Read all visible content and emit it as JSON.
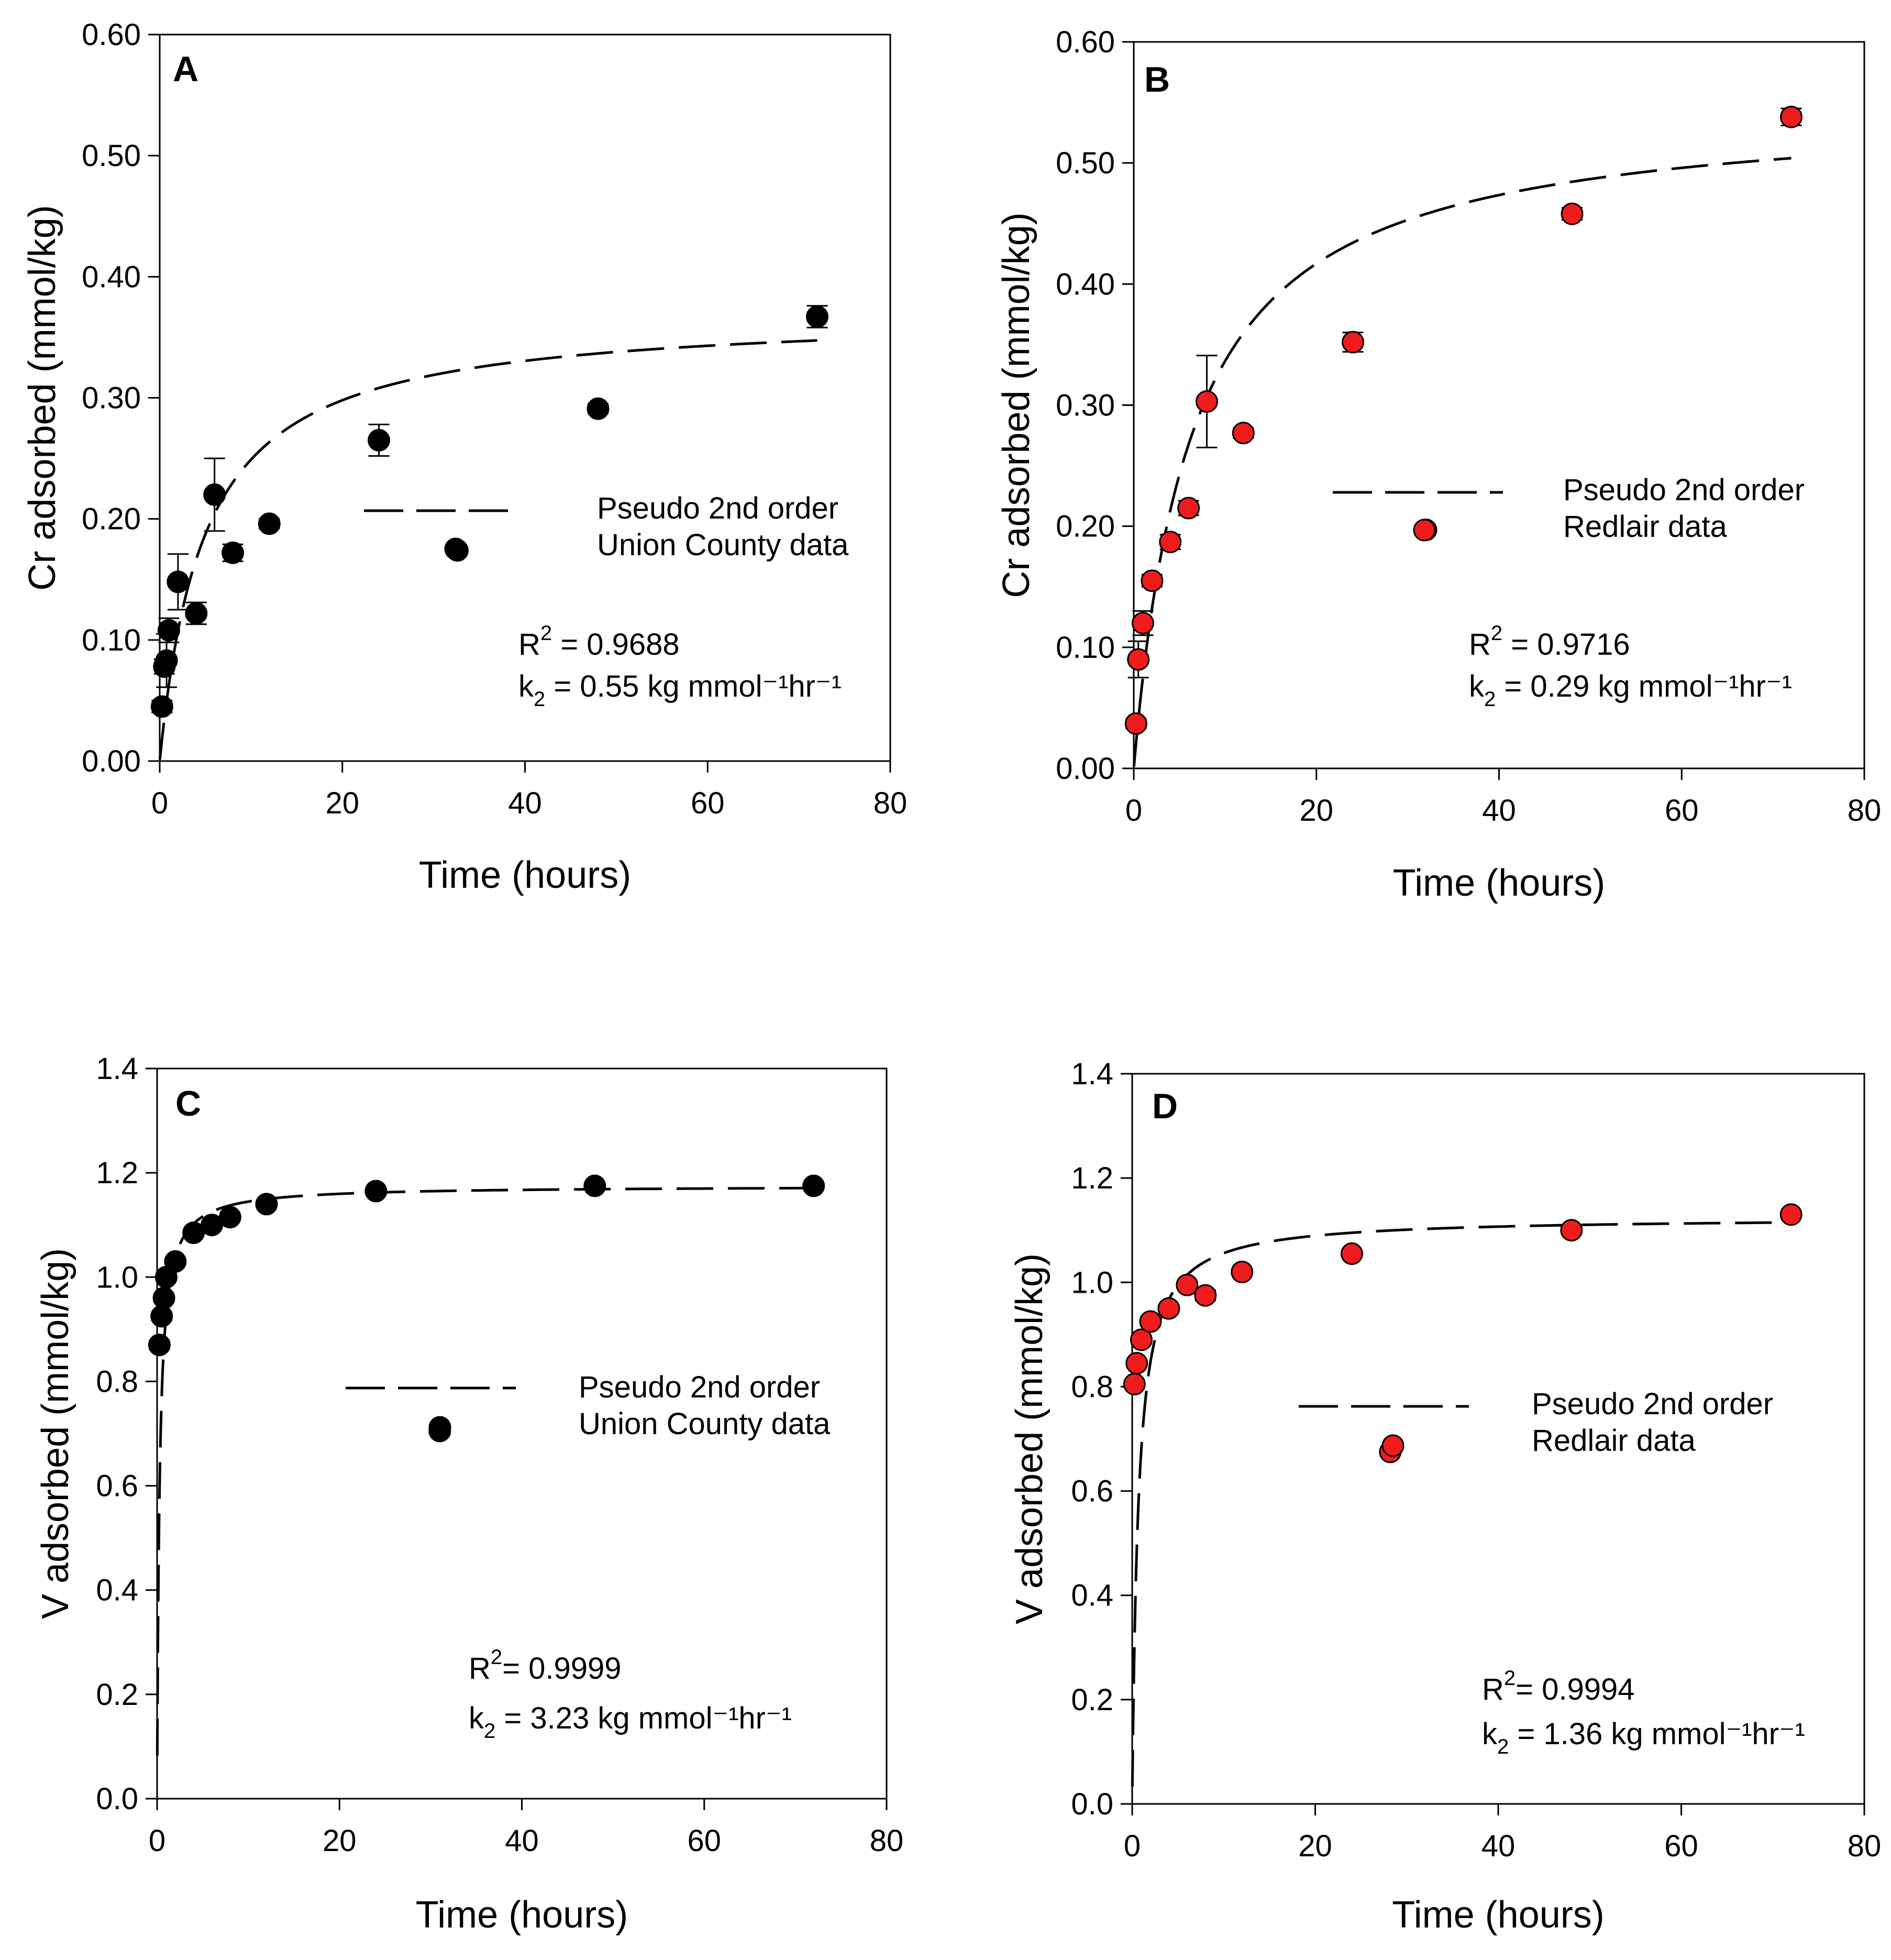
{
  "figure": {
    "panels": [
      {
        "id": "A",
        "letter": "A",
        "ylabel": "Cr adsorbed (mmol/kg)",
        "xlabel": "Time (hours)",
        "yticks": [
          "0.00",
          "0.10",
          "0.20",
          "0.30",
          "0.40",
          "0.50",
          "0.60"
        ],
        "xticks": [
          "0",
          "20",
          "40",
          "60",
          "80"
        ],
        "legend": {
          "line": "Pseudo 2nd order",
          "points": "Union County data"
        },
        "stats": {
          "r2_prefix": "R",
          "r2_sup": "2",
          "r2_value": " = 0.9688",
          "k_prefix": "k",
          "k_sub": "2",
          "k_value": " = 0.55 kg mmol⁻¹hr⁻¹"
        }
      },
      {
        "id": "B",
        "letter": "B",
        "ylabel": "Cr adsorbed (mmol/kg)",
        "xlabel": "Time (hours)",
        "yticks": [
          "0.00",
          "0.10",
          "0.20",
          "0.30",
          "0.40",
          "0.50",
          "0.60"
        ],
        "xticks": [
          "0",
          "20",
          "40",
          "60",
          "80"
        ],
        "legend": {
          "line": "Pseudo 2nd order",
          "points": "Redlair data"
        },
        "stats": {
          "r2_prefix": "R",
          "r2_sup": "2",
          "r2_value": " = 0.9716",
          "k_prefix": "k",
          "k_sub": "2",
          "k_value": " = 0.29 kg mmol⁻¹hr⁻¹"
        }
      },
      {
        "id": "C",
        "letter": "C",
        "ylabel": "V adsorbed (mmol/kg)",
        "xlabel": "Time (hours)",
        "yticks": [
          "0.0",
          "0.2",
          "0.4",
          "0.6",
          "0.8",
          "1.0",
          "1.2",
          "1.4"
        ],
        "xticks": [
          "0",
          "20",
          "40",
          "60",
          "80"
        ],
        "legend": {
          "line": "Pseudo 2nd order",
          "points": "Union County data"
        },
        "stats": {
          "r2_prefix": "R",
          "r2_sup": "2",
          "r2_value": "= 0.9999",
          "k_prefix": "k",
          "k_sub": "2",
          "k_value": " = 3.23 kg mmol⁻¹hr⁻¹"
        }
      },
      {
        "id": "D",
        "letter": "D",
        "ylabel": "V adsorbed (mmol/kg)",
        "xlabel": "Time (hours)",
        "yticks": [
          "0.0",
          "0.2",
          "0.4",
          "0.6",
          "0.8",
          "1.0",
          "1.2",
          "1.4"
        ],
        "xticks": [
          "0",
          "20",
          "40",
          "60",
          "80"
        ],
        "legend": {
          "line": "Pseudo 2nd order",
          "points": "Redlair data"
        },
        "stats": {
          "r2_prefix": "R",
          "r2_sup": "2",
          "r2_value": "= 0.9994",
          "k_prefix": "k",
          "k_sub": "2",
          "k_value": " = 1.36 kg mmol⁻¹hr⁻¹"
        }
      }
    ]
  },
  "chart_data": [
    {
      "panel": "A",
      "type": "scatter",
      "title": "",
      "xlabel": "Time (hours)",
      "ylabel": "Cr adsorbed (mmol/kg)",
      "xlim": [
        0,
        80
      ],
      "ylim": [
        0,
        0.6
      ],
      "marker_color": "#000000",
      "fit": {
        "name": "Pseudo 2nd order",
        "qe": 0.371,
        "k2": 0.55
      },
      "series": [
        {
          "name": "Union County data",
          "x": [
            0.25,
            0.5,
            0.75,
            1,
            2,
            4,
            6,
            8,
            12,
            24,
            32.6,
            48,
            72
          ],
          "y": [
            0.045,
            0.078,
            0.083,
            0.108,
            0.148,
            0.122,
            0.22,
            0.172,
            0.196,
            0.265,
            0.174,
            0.291,
            0.367
          ],
          "err": [
            0.005,
            0.006,
            0.022,
            0.01,
            0.023,
            0.009,
            0.03,
            0.007,
            0.004,
            0.013,
            0.003,
            0.004,
            0.009
          ]
        }
      ]
    },
    {
      "panel": "B",
      "type": "scatter",
      "title": "",
      "xlabel": "Time (hours)",
      "ylabel": "Cr adsorbed (mmol/kg)",
      "xlim": [
        0,
        80
      ],
      "ylim": [
        0,
        0.6
      ],
      "marker_color": "#ee1c1c",
      "fit": {
        "name": "Pseudo 2nd order",
        "qe": 0.548,
        "k2": 0.29
      },
      "series": [
        {
          "name": "Redlair data",
          "x": [
            0.25,
            0.5,
            1,
            2,
            4,
            6,
            8,
            12,
            24,
            32,
            48,
            72
          ],
          "y": [
            0.037,
            0.09,
            0.12,
            0.155,
            0.187,
            0.215,
            0.303,
            0.277,
            0.352,
            0.197,
            0.458,
            0.538
          ],
          "err": [
            0.004,
            0.015,
            0.01,
            0.005,
            0.006,
            0.006,
            0.038,
            0.004,
            0.008,
            0.003,
            0.005,
            0.007
          ]
        }
      ]
    },
    {
      "panel": "C",
      "type": "scatter",
      "title": "",
      "xlabel": "Time (hours)",
      "ylabel": "V adsorbed (mmol/kg)",
      "xlim": [
        0,
        80
      ],
      "ylim": [
        0,
        1.4
      ],
      "marker_color": "#000000",
      "fit": {
        "name": "Pseudo 2nd order",
        "qe": 1.175,
        "k2": 3.23
      },
      "series": [
        {
          "name": "Union County data",
          "x": [
            0.25,
            0.5,
            0.75,
            1,
            2,
            4,
            6,
            8,
            12,
            24,
            31,
            48,
            72
          ],
          "y": [
            0.87,
            0.925,
            0.96,
            1.0,
            1.03,
            1.085,
            1.1,
            1.115,
            1.14,
            1.165,
            0.705,
            1.175,
            1.175
          ],
          "err": [
            0.008,
            0.008,
            0.008,
            0.008,
            0.006,
            0.006,
            0.006,
            0.006,
            0.006,
            0.005,
            0.003,
            0.005,
            0.005
          ]
        }
      ]
    },
    {
      "panel": "D",
      "type": "scatter",
      "title": "",
      "xlabel": "Time (hours)",
      "ylabel": "V adsorbed (mmol/kg)",
      "xlim": [
        0,
        80
      ],
      "ylim": [
        0,
        1.4
      ],
      "marker_color": "#ee1c1c",
      "fit": {
        "name": "Pseudo 2nd order",
        "qe": 1.125,
        "k2": 1.36
      },
      "series": [
        {
          "name": "Redlair data",
          "x": [
            0.25,
            0.5,
            1,
            2,
            4,
            6,
            8,
            12,
            24,
            28.2,
            48,
            72
          ],
          "y": [
            0.805,
            0.845,
            0.89,
            0.925,
            0.95,
            0.995,
            0.975,
            1.02,
            1.055,
            0.675,
            1.1,
            1.13
          ],
          "err": [
            0.006,
            0.006,
            0.008,
            0.008,
            0.006,
            0.006,
            0.01,
            0.006,
            0.005,
            0.003,
            0.006,
            0.005
          ]
        }
      ]
    }
  ]
}
